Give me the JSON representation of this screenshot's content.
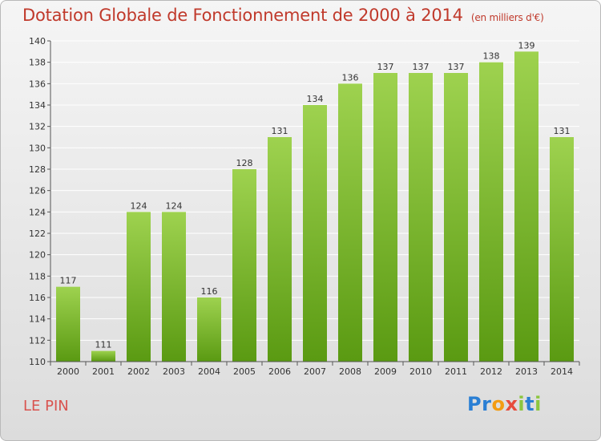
{
  "header": {
    "title": "Dotation Globale de Fonctionnement de 2000 à 2014",
    "subtitle": "(en milliers d'€)"
  },
  "footer": {
    "place": "LE PIN",
    "brand_letters": [
      {
        "ch": "P",
        "color": "#2a7fd4"
      },
      {
        "ch": "r",
        "color": "#2a7fd4"
      },
      {
        "ch": "o",
        "color": "#f39c12"
      },
      {
        "ch": "x",
        "color": "#e74c3c"
      },
      {
        "ch": "i",
        "color": "#8cc63f"
      },
      {
        "ch": "t",
        "color": "#2a7fd4"
      },
      {
        "ch": "i",
        "color": "#8cc63f"
      }
    ]
  },
  "colors": {
    "bar_top": "#9ed24f",
    "bar_bottom": "#5a9a12",
    "grid": "#ffffff",
    "axis_text": "#333333",
    "accent": "#c0392b"
  },
  "chart_data": {
    "type": "bar",
    "title": "Dotation Globale de Fonctionnement de 2000 à 2014",
    "subtitle": "(en milliers d'€)",
    "categories": [
      "2000",
      "2001",
      "2002",
      "2003",
      "2004",
      "2005",
      "2006",
      "2007",
      "2008",
      "2009",
      "2010",
      "2011",
      "2012",
      "2013",
      "2014"
    ],
    "values": [
      117,
      111,
      124,
      124,
      116,
      128,
      131,
      134,
      136,
      137,
      137,
      137,
      138,
      139,
      131
    ],
    "ylim": [
      110,
      140
    ],
    "yticks": [
      110,
      112,
      114,
      116,
      118,
      120,
      122,
      124,
      126,
      128,
      130,
      132,
      134,
      136,
      138,
      140
    ],
    "grid": true,
    "data_labels": true
  }
}
